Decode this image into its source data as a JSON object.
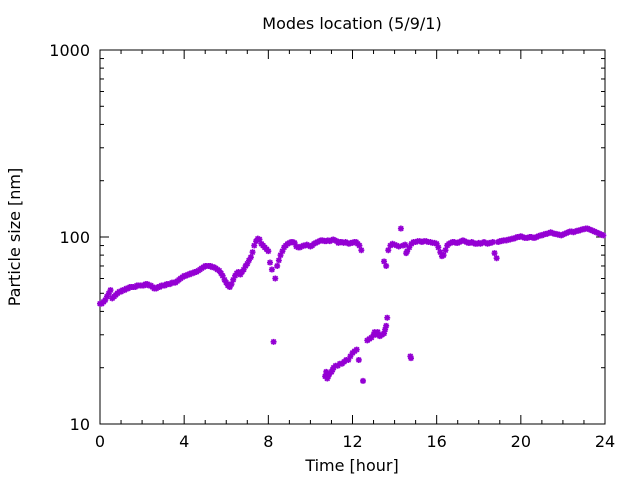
{
  "chart_data": {
    "type": "scatter",
    "title": "Modes location (5/9/1)",
    "xlabel": "Time [hour]",
    "ylabel": "Particle size [nm]",
    "xlim": [
      0,
      24
    ],
    "ylim": [
      10,
      1000
    ],
    "yscale": "log",
    "grid": false,
    "legend": "none",
    "marker": "asterisk",
    "color": "#9400d3",
    "x_ticks": [
      {
        "value": 0,
        "label": "0"
      },
      {
        "value": 4,
        "label": "4"
      },
      {
        "value": 8,
        "label": "8"
      },
      {
        "value": 12,
        "label": "12"
      },
      {
        "value": 16,
        "label": "16"
      },
      {
        "value": 20,
        "label": "20"
      },
      {
        "value": 24,
        "label": "24"
      }
    ],
    "y_ticks": [
      {
        "value": 10,
        "label": "10"
      },
      {
        "value": 100,
        "label": "100"
      },
      {
        "value": 1000,
        "label": "1000"
      }
    ],
    "series": [
      {
        "values": [
          [
            0.0,
            44
          ],
          [
            0.08,
            44
          ],
          [
            0.17,
            45
          ],
          [
            0.25,
            46
          ],
          [
            0.33,
            48
          ],
          [
            0.42,
            50
          ],
          [
            0.5,
            52
          ],
          [
            0.58,
            47
          ],
          [
            0.67,
            48
          ],
          [
            0.75,
            49
          ],
          [
            0.83,
            50
          ],
          [
            0.92,
            51
          ],
          [
            1.0,
            51
          ],
          [
            1.08,
            52
          ],
          [
            1.17,
            52
          ],
          [
            1.25,
            53
          ],
          [
            1.33,
            53
          ],
          [
            1.42,
            54
          ],
          [
            1.5,
            54
          ],
          [
            1.58,
            54
          ],
          [
            1.67,
            54
          ],
          [
            1.75,
            55
          ],
          [
            1.83,
            55
          ],
          [
            1.92,
            55
          ],
          [
            2.0,
            55
          ],
          [
            2.08,
            55
          ],
          [
            2.17,
            56
          ],
          [
            2.25,
            56
          ],
          [
            2.33,
            55
          ],
          [
            2.42,
            55
          ],
          [
            2.5,
            54
          ],
          [
            2.58,
            53
          ],
          [
            2.67,
            53
          ],
          [
            2.75,
            54
          ],
          [
            2.83,
            54
          ],
          [
            2.92,
            55
          ],
          [
            3.0,
            55
          ],
          [
            3.08,
            55
          ],
          [
            3.17,
            56
          ],
          [
            3.25,
            56
          ],
          [
            3.33,
            56
          ],
          [
            3.42,
            57
          ],
          [
            3.5,
            57
          ],
          [
            3.58,
            57
          ],
          [
            3.67,
            58
          ],
          [
            3.75,
            59
          ],
          [
            3.83,
            60
          ],
          [
            3.92,
            61
          ],
          [
            4.0,
            62
          ],
          [
            4.08,
            62
          ],
          [
            4.17,
            63
          ],
          [
            4.25,
            63
          ],
          [
            4.33,
            64
          ],
          [
            4.42,
            64
          ],
          [
            4.5,
            65
          ],
          [
            4.58,
            65
          ],
          [
            4.67,
            66
          ],
          [
            4.75,
            67
          ],
          [
            4.83,
            68
          ],
          [
            4.92,
            69
          ],
          [
            5.0,
            70
          ],
          [
            5.08,
            70
          ],
          [
            5.17,
            70
          ],
          [
            5.25,
            70
          ],
          [
            5.33,
            69
          ],
          [
            5.42,
            69
          ],
          [
            5.5,
            68
          ],
          [
            5.58,
            67
          ],
          [
            5.67,
            66
          ],
          [
            5.75,
            64
          ],
          [
            5.83,
            62
          ],
          [
            5.92,
            59
          ],
          [
            6.0,
            57
          ],
          [
            6.08,
            55
          ],
          [
            6.17,
            54
          ],
          [
            6.25,
            56
          ],
          [
            6.33,
            59
          ],
          [
            6.42,
            62
          ],
          [
            6.5,
            64
          ],
          [
            6.58,
            65
          ],
          [
            6.67,
            63
          ],
          [
            6.75,
            65
          ],
          [
            6.83,
            67
          ],
          [
            6.92,
            70
          ],
          [
            7.0,
            72
          ],
          [
            7.08,
            75
          ],
          [
            7.17,
            78
          ],
          [
            7.25,
            83
          ],
          [
            7.33,
            90
          ],
          [
            7.42,
            95
          ],
          [
            7.5,
            98
          ],
          [
            7.58,
            97
          ],
          [
            7.67,
            92
          ],
          [
            7.75,
            90
          ],
          [
            7.83,
            88
          ],
          [
            7.92,
            86
          ],
          [
            8.0,
            84
          ],
          [
            8.08,
            73
          ],
          [
            8.17,
            67
          ],
          [
            8.25,
            27.5
          ],
          [
            8.33,
            60
          ],
          [
            8.42,
            70
          ],
          [
            8.5,
            75
          ],
          [
            8.58,
            80
          ],
          [
            8.67,
            84
          ],
          [
            8.75,
            88
          ],
          [
            8.83,
            90
          ],
          [
            8.92,
            92
          ],
          [
            9.0,
            93
          ],
          [
            9.08,
            94
          ],
          [
            9.17,
            94
          ],
          [
            9.25,
            93
          ],
          [
            9.33,
            89
          ],
          [
            9.42,
            88
          ],
          [
            9.5,
            88
          ],
          [
            9.58,
            89
          ],
          [
            9.67,
            90
          ],
          [
            9.75,
            90
          ],
          [
            9.83,
            91
          ],
          [
            9.92,
            90
          ],
          [
            10.0,
            89
          ],
          [
            10.08,
            90
          ],
          [
            10.17,
            92
          ],
          [
            10.25,
            93
          ],
          [
            10.33,
            94
          ],
          [
            10.42,
            95
          ],
          [
            10.5,
            96
          ],
          [
            10.58,
            96
          ],
          [
            10.67,
            95
          ],
          [
            10.75,
            95
          ],
          [
            10.83,
            96
          ],
          [
            10.92,
            95
          ],
          [
            11.0,
            96
          ],
          [
            11.08,
            97
          ],
          [
            11.17,
            96
          ],
          [
            11.25,
            95
          ],
          [
            11.33,
            93
          ],
          [
            11.42,
            94
          ],
          [
            11.5,
            94
          ],
          [
            11.58,
            93
          ],
          [
            11.67,
            94
          ],
          [
            11.75,
            93
          ],
          [
            11.83,
            92
          ],
          [
            11.92,
            93
          ],
          [
            12.0,
            93
          ],
          [
            12.08,
            94
          ],
          [
            12.17,
            94
          ],
          [
            12.25,
            92
          ],
          [
            12.33,
            90
          ],
          [
            12.42,
            85
          ],
          [
            10.7,
            18
          ],
          [
            10.75,
            19
          ],
          [
            10.8,
            17.5
          ],
          [
            10.85,
            18
          ],
          [
            10.9,
            18.5
          ],
          [
            11.0,
            19
          ],
          [
            11.05,
            19.5
          ],
          [
            11.1,
            20
          ],
          [
            11.2,
            20.5
          ],
          [
            11.3,
            20.5
          ],
          [
            11.4,
            21
          ],
          [
            11.5,
            21
          ],
          [
            11.6,
            21.5
          ],
          [
            11.7,
            22
          ],
          [
            11.8,
            22
          ],
          [
            11.9,
            23
          ],
          [
            12.0,
            24
          ],
          [
            12.1,
            24.5
          ],
          [
            12.2,
            25
          ],
          [
            12.3,
            22
          ],
          [
            12.5,
            17
          ],
          [
            12.7,
            28
          ],
          [
            12.8,
            28.5
          ],
          [
            12.9,
            29
          ],
          [
            13.0,
            30
          ],
          [
            13.05,
            31
          ],
          [
            13.1,
            30
          ],
          [
            13.2,
            31
          ],
          [
            13.3,
            29.5
          ],
          [
            13.4,
            30
          ],
          [
            13.5,
            30.5
          ],
          [
            13.55,
            32
          ],
          [
            13.6,
            33.5
          ],
          [
            13.65,
            37
          ],
          [
            13.5,
            74
          ],
          [
            13.6,
            70
          ],
          [
            13.7,
            85
          ],
          [
            13.8,
            90
          ],
          [
            13.9,
            92
          ],
          [
            14.0,
            91
          ],
          [
            14.1,
            90
          ],
          [
            14.2,
            89
          ],
          [
            14.3,
            111
          ],
          [
            14.4,
            90
          ],
          [
            14.5,
            91
          ],
          [
            14.55,
            82
          ],
          [
            14.6,
            84
          ],
          [
            14.7,
            88
          ],
          [
            14.75,
            23
          ],
          [
            14.78,
            22.5
          ],
          [
            14.8,
            92
          ],
          [
            14.9,
            94
          ],
          [
            15.0,
            94
          ],
          [
            15.1,
            95
          ],
          [
            15.2,
            95
          ],
          [
            15.3,
            94
          ],
          [
            15.4,
            95
          ],
          [
            15.5,
            95
          ],
          [
            15.6,
            94
          ],
          [
            15.7,
            94
          ],
          [
            15.8,
            93
          ],
          [
            15.9,
            93
          ],
          [
            16.0,
            92
          ],
          [
            16.08,
            88
          ],
          [
            16.17,
            83
          ],
          [
            16.25,
            79
          ],
          [
            16.33,
            80
          ],
          [
            16.42,
            85
          ],
          [
            16.5,
            90
          ],
          [
            16.58,
            92
          ],
          [
            16.67,
            93
          ],
          [
            16.75,
            94
          ],
          [
            16.83,
            94
          ],
          [
            16.92,
            93
          ],
          [
            17.0,
            93
          ],
          [
            17.08,
            94
          ],
          [
            17.17,
            95
          ],
          [
            17.25,
            96
          ],
          [
            17.33,
            95
          ],
          [
            17.42,
            94
          ],
          [
            17.5,
            93
          ],
          [
            17.58,
            93
          ],
          [
            17.67,
            94
          ],
          [
            17.75,
            93
          ],
          [
            17.83,
            92
          ],
          [
            17.92,
            92
          ],
          [
            18.0,
            93
          ],
          [
            18.08,
            92
          ],
          [
            18.17,
            93
          ],
          [
            18.25,
            94
          ],
          [
            18.33,
            93
          ],
          [
            18.42,
            92
          ],
          [
            18.5,
            93
          ],
          [
            18.58,
            93
          ],
          [
            18.67,
            94
          ],
          [
            18.75,
            82
          ],
          [
            18.85,
            77
          ],
          [
            18.92,
            94
          ],
          [
            19.0,
            95
          ],
          [
            19.08,
            95
          ],
          [
            19.17,
            96
          ],
          [
            19.25,
            96
          ],
          [
            19.33,
            96
          ],
          [
            19.42,
            97
          ],
          [
            19.5,
            97
          ],
          [
            19.58,
            98
          ],
          [
            19.67,
            98
          ],
          [
            19.75,
            99
          ],
          [
            19.83,
            100
          ],
          [
            19.92,
            100
          ],
          [
            20.0,
            101
          ],
          [
            20.08,
            100
          ],
          [
            20.17,
            99
          ],
          [
            20.25,
            99
          ],
          [
            20.33,
            99
          ],
          [
            20.42,
            100
          ],
          [
            20.5,
            100
          ],
          [
            20.58,
            99
          ],
          [
            20.67,
            99
          ],
          [
            20.75,
            100
          ],
          [
            20.83,
            101
          ],
          [
            20.92,
            102
          ],
          [
            21.0,
            102
          ],
          [
            21.08,
            103
          ],
          [
            21.17,
            104
          ],
          [
            21.25,
            104
          ],
          [
            21.33,
            105
          ],
          [
            21.42,
            106
          ],
          [
            21.5,
            105
          ],
          [
            21.58,
            104
          ],
          [
            21.67,
            104
          ],
          [
            21.75,
            103
          ],
          [
            21.83,
            103
          ],
          [
            21.92,
            102
          ],
          [
            22.0,
            103
          ],
          [
            22.08,
            104
          ],
          [
            22.17,
            105
          ],
          [
            22.25,
            106
          ],
          [
            22.33,
            107
          ],
          [
            22.42,
            107
          ],
          [
            22.5,
            106
          ],
          [
            22.58,
            107
          ],
          [
            22.67,
            108
          ],
          [
            22.75,
            108
          ],
          [
            22.83,
            109
          ],
          [
            22.92,
            110
          ],
          [
            23.0,
            110
          ],
          [
            23.08,
            111
          ],
          [
            23.17,
            111
          ],
          [
            23.25,
            110
          ],
          [
            23.33,
            109
          ],
          [
            23.42,
            108
          ],
          [
            23.5,
            107
          ],
          [
            23.58,
            106
          ],
          [
            23.67,
            105
          ],
          [
            23.75,
            104
          ],
          [
            23.83,
            103
          ],
          [
            23.92,
            102
          ]
        ]
      }
    ]
  }
}
